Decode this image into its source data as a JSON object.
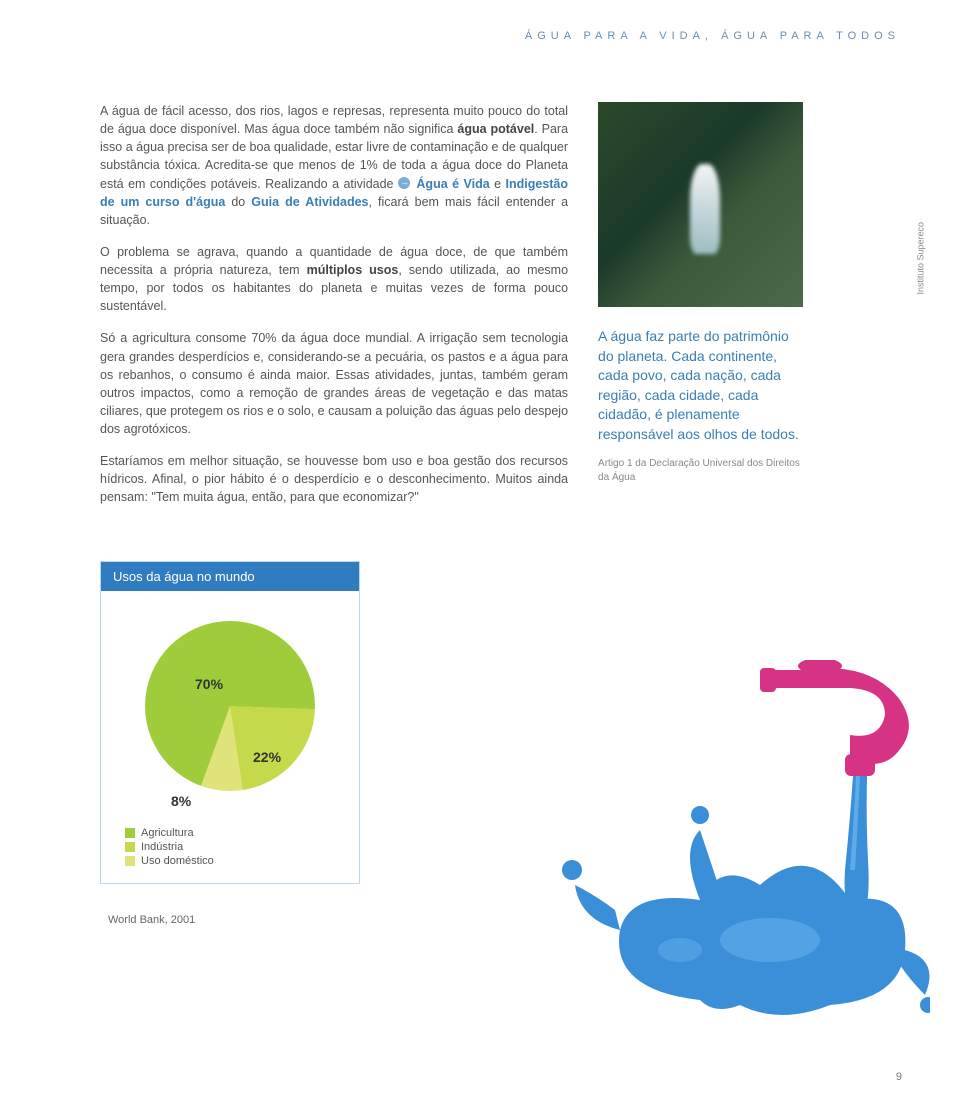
{
  "header": "ÁGUA PARA A VIDA, ÁGUA PARA TODOS",
  "paragraphs": {
    "p1a": "A água de fácil acesso, dos rios, lagos e represas, representa muito pouco do total de água doce disponível. Mas água doce também não significa ",
    "p1b": "água potável",
    "p1c": ". Para isso a água precisa ser de boa qualidade, estar livre de contaminação e de qualquer substância tóxica. Acredita-se que menos de 1% de toda a água doce do Planeta está em condições potáveis. Realizando a atividade ",
    "p1d": "Água é Vida",
    "p1e": " e ",
    "p1f": "Indigestão de um curso d'água",
    "p1g": " do ",
    "p1h": "Guia de Atividades",
    "p1i": ", ficará bem mais fácil entender a situação.",
    "p2a": "O problema se agrava, quando a quantidade de água doce, de que também necessita a própria natureza, tem ",
    "p2b": "múltiplos usos",
    "p2c": ", sendo utilizada, ao mesmo tempo, por todos os habitantes do planeta e muitas vezes de forma pouco sustentável.",
    "p3": "Só a agricultura consome 70% da água doce mundial. A irrigação sem tecnologia gera grandes desperdícios e, considerando-se a pecuária, os pastos e a água para os rebanhos, o consumo é ainda maior. Essas atividades, juntas, também geram outros impactos, como a remoção de grandes áreas de vegetação e das matas ciliares, que protegem os rios e o solo, e causam a poluição das águas pelo despejo dos agrotóxicos.",
    "p4": "Estaríamos em melhor situação, se houvesse bom uso e boa gestão dos recursos hídricos. Afinal, o pior hábito é o desperdício e o desconhecimento. Muitos ainda pensam: \"Tem muita água, então, para que economizar?\""
  },
  "photo_credit": "Instituto Supereco",
  "quote": "A água faz parte do patrimônio do planeta. Cada continente, cada povo, cada nação, cada região, cada cidade, cada cidadão, é plenamente responsável aos olhos de todos.",
  "quote_src": "Artigo 1 da Declaração Universal dos Direitos da Água",
  "chart": {
    "title": "Usos da água no mundo",
    "slices": [
      {
        "label": "70%",
        "value": 70,
        "name": "Agricultura",
        "color": "#9ecc3b"
      },
      {
        "label": "22%",
        "value": 22,
        "name": "Indústria",
        "color": "#c6d94a"
      },
      {
        "label": "8%",
        "value": 8,
        "name": "Uso doméstico",
        "color": "#e0e27a"
      }
    ],
    "bg": "#ffffff"
  },
  "source": "World Bank, 2001",
  "page_number": "9",
  "illustration": {
    "faucet_color": "#d63384",
    "water_color": "#3a8fd8",
    "highlight": "#6ab8f0"
  }
}
